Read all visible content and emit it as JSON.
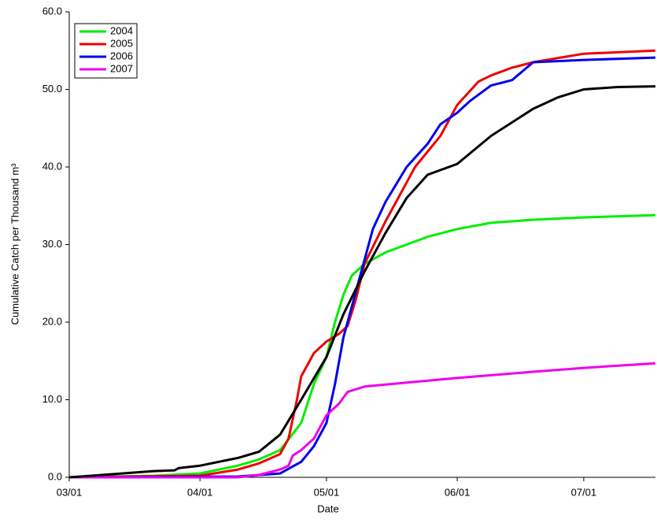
{
  "chart_data": {
    "type": "line",
    "x_label": "Date",
    "y_label": "Cumulative Catch per Thousand m³",
    "xlim": [
      0,
      139
    ],
    "ylim": [
      0,
      60
    ],
    "xticks": [
      {
        "value": 0,
        "label": "03/01"
      },
      {
        "value": 31,
        "label": "04/01"
      },
      {
        "value": 61,
        "label": "05/01"
      },
      {
        "value": 92,
        "label": "06/01"
      },
      {
        "value": 122,
        "label": "07/01"
      }
    ],
    "yticks": [
      {
        "value": 0,
        "label": "0.0"
      },
      {
        "value": 10,
        "label": "10.0"
      },
      {
        "value": 20,
        "label": "20.0"
      },
      {
        "value": 30,
        "label": "30.0"
      },
      {
        "value": 40,
        "label": "40.0"
      },
      {
        "value": 50,
        "label": "50.0"
      },
      {
        "value": 60,
        "label": "60.0"
      }
    ],
    "grid": false,
    "legend_position": "upper-left",
    "series": [
      {
        "name": "2004",
        "color": "#00ee00",
        "x": [
          0,
          10,
          20,
          31,
          40,
          45,
          50,
          55,
          58,
          61,
          63,
          65,
          67,
          70,
          75,
          80,
          85,
          92,
          100,
          110,
          122,
          139
        ],
        "values": [
          0,
          0.1,
          0.2,
          0.5,
          1.5,
          2.3,
          3.5,
          7,
          12,
          15.5,
          20,
          23.5,
          26,
          27.5,
          29,
          30,
          31,
          32,
          32.8,
          33.2,
          33.5,
          33.8
        ]
      },
      {
        "name": "2005",
        "color": "#ee0000",
        "x": [
          0,
          31,
          40,
          45,
          50,
          52,
          54,
          55,
          58,
          61,
          64,
          66,
          68,
          70,
          75,
          78,
          82,
          88,
          92,
          97,
          100,
          105,
          110,
          122,
          139
        ],
        "values": [
          0,
          0.2,
          1,
          1.8,
          3,
          5,
          10,
          13,
          16,
          17.5,
          18.5,
          19.5,
          23,
          27.5,
          33,
          36,
          40,
          44,
          48,
          51,
          51.8,
          52.8,
          53.5,
          54.6,
          55
        ]
      },
      {
        "name": "2006",
        "color": "#0000ee",
        "x": [
          0,
          40,
          50,
          55,
          58,
          61,
          63,
          65,
          67,
          70,
          72,
          75,
          80,
          85,
          88,
          92,
          95,
          100,
          105,
          110,
          122,
          139
        ],
        "values": [
          0,
          0.1,
          0.5,
          2,
          4,
          7,
          12,
          18,
          22,
          28,
          32,
          35.5,
          40,
          43,
          45.5,
          47,
          48.5,
          50.5,
          51.2,
          53.5,
          53.8,
          54.1
        ]
      },
      {
        "name": "2007",
        "color": "#ee00ee",
        "x": [
          0,
          40,
          45,
          50,
          52,
          53,
          55,
          58,
          61,
          64,
          66,
          70,
          80,
          92,
          110,
          122,
          139
        ],
        "values": [
          0,
          0,
          0.3,
          1,
          1.5,
          2.8,
          3.5,
          5,
          8,
          9.5,
          11,
          11.7,
          12.2,
          12.8,
          13.6,
          14.1,
          14.7
        ]
      },
      {
        "color": "#000000",
        "x": [
          0,
          10,
          20,
          25,
          26,
          31,
          40,
          45,
          50,
          55,
          61,
          65,
          70,
          75,
          80,
          85,
          92,
          100,
          110,
          116,
          122,
          130,
          139
        ],
        "values": [
          0,
          0.4,
          0.8,
          0.9,
          1.2,
          1.5,
          2.5,
          3.3,
          5.5,
          10,
          15.5,
          21,
          26.5,
          31.5,
          36,
          39,
          40.4,
          44,
          47.5,
          49,
          50,
          50.3,
          50.4
        ]
      }
    ]
  }
}
